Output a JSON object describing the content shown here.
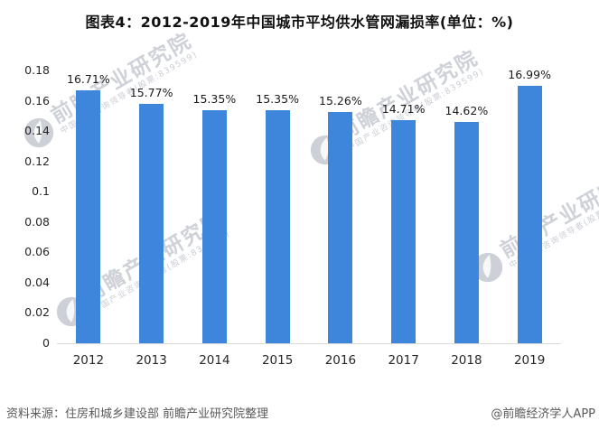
{
  "chart_data": {
    "type": "bar",
    "title": "图表4：2012-2019年中国城市平均供水管网漏损率(单位：%)",
    "categories": [
      "2012",
      "2013",
      "2014",
      "2015",
      "2016",
      "2017",
      "2018",
      "2019"
    ],
    "values": [
      16.71,
      15.77,
      15.35,
      15.35,
      15.26,
      14.71,
      14.62,
      16.99
    ],
    "value_labels": [
      "16.71%",
      "15.77%",
      "15.35%",
      "15.35%",
      "15.26%",
      "14.71%",
      "14.62%",
      "16.99%"
    ],
    "xlabel": "",
    "ylabel": "",
    "y_axis": {
      "min": 0,
      "max": 0.18,
      "tick_values": [
        0,
        0.02,
        0.04,
        0.06,
        0.08,
        0.1,
        0.12,
        0.14,
        0.16,
        0.18
      ],
      "tick_labels": [
        "0",
        "0.02",
        "0.04",
        "0.06",
        "0.08",
        "0.1",
        "0.12",
        "0.14",
        "0.16",
        "0.18"
      ]
    },
    "grid": false,
    "legend": false,
    "bar_color": "#3E86DB",
    "axis_line_color": "#D9D9D9"
  },
  "watermark": {
    "brand_text": "前瞻产业研究院",
    "sub_text": "中国产业咨询领导者(股票:839599)"
  },
  "footer": {
    "source": "资料来源：住房和城乡建设部 前瞻产业研究院整理",
    "credit": "@前瞻经济学人APP"
  }
}
